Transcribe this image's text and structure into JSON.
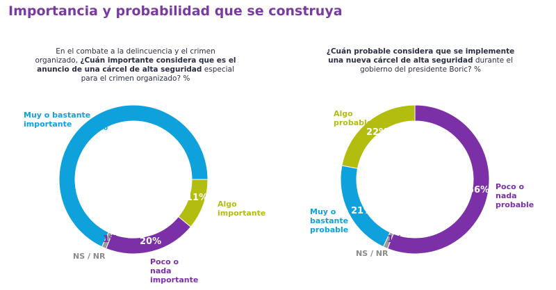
{
  "title": "Importancia y probabilidad que se construya",
  "colors": {
    "blue": "#0ea1dc",
    "green": "#b2bd10",
    "purple": "#7b30a8",
    "gray": "#9a9a9a",
    "title": "#7a3b9f"
  },
  "chart_data": [
    {
      "type": "pie",
      "style": "donut",
      "question": {
        "pre": "En el combate a la delincuencia y el crimen organizado, ",
        "bold": "¿Cuán importante considera que es el anuncio de una cárcel de alta seguridad",
        "post": " especial para el crimen organizado? %"
      },
      "slices": [
        {
          "label": "Algo importante",
          "value": 11,
          "pct_label": "11%",
          "color": "#b2bd10"
        },
        {
          "label": "Poco o nada importante",
          "value": 20,
          "pct_label": "20%",
          "color": "#7b30a8"
        },
        {
          "label": "NS / NR",
          "value": 1,
          "pct_label": "1%",
          "color": "#9a9a9a"
        },
        {
          "label": "Muy o bastante importante",
          "value": 68,
          "pct_label": "68%",
          "color": "#0ea1dc"
        }
      ]
    },
    {
      "type": "pie",
      "style": "donut",
      "question": {
        "pre": "",
        "bold": "¿Cuán probable considera que se implemente una nueva cárcel de alta seguridad",
        "post": " durante el gobierno del presidente Boric? %"
      },
      "slices": [
        {
          "label": "Poco o nada probable",
          "value": 56,
          "pct_label": "56%",
          "color": "#7b30a8"
        },
        {
          "label": "NS / NR",
          "value": 1,
          "pct_label": "1%",
          "color": "#9a9a9a"
        },
        {
          "label": "Muy o bastante probable",
          "value": 21,
          "pct_label": "21%",
          "color": "#0ea1dc"
        },
        {
          "label": "Algo probable",
          "value": 22,
          "pct_label": "22%",
          "color": "#b2bd10"
        }
      ]
    }
  ]
}
